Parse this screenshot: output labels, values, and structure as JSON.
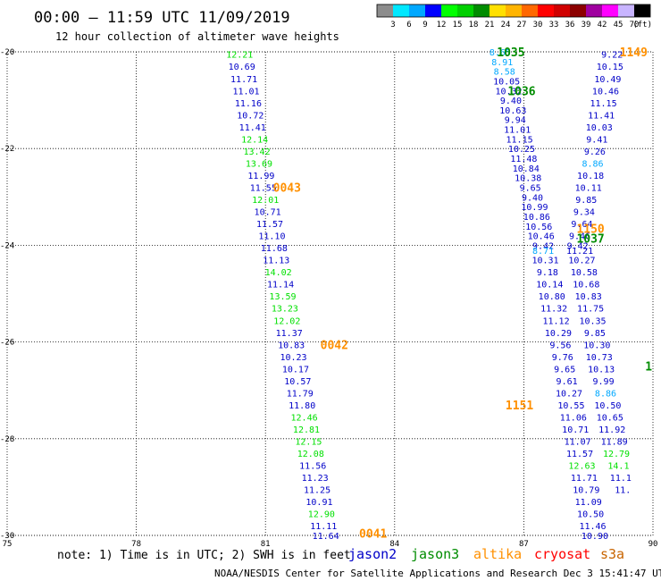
{
  "header": {
    "title": "00:00 – 11:59 UTC 11/09/2019",
    "subtitle": "12 hour collection of altimeter wave heights"
  },
  "colorbar": {
    "colors": [
      "#8c8c8c",
      "#00e8ff",
      "#00a8ff",
      "#0000ff",
      "#00ff00",
      "#00d000",
      "#008c00",
      "#ffe000",
      "#ffb400",
      "#ff6800",
      "#ff0000",
      "#d00000",
      "#8c0000",
      "#a000a0",
      "#ff00ff",
      "#c8b4ff",
      "#000000"
    ],
    "labels": [
      "3",
      "6",
      "9",
      "12",
      "15",
      "18",
      "21",
      "24",
      "27",
      "30",
      "33",
      "36",
      "39",
      "42",
      "45",
      "70"
    ],
    "unit": "(ft)"
  },
  "chart_data": {
    "type": "scatter",
    "xlabel": "",
    "ylabel": "",
    "xlim": [
      75,
      90
    ],
    "ylim": [
      -30,
      -20
    ],
    "x_ticks": [
      "75",
      "78",
      "81",
      "84",
      "87",
      "90"
    ],
    "y_ticks": [
      "-20",
      "-22",
      "-24",
      "-26",
      "-28",
      "-30"
    ],
    "grid": true,
    "points": [
      {
        "lon": 80.4,
        "lat": -20.05,
        "v": "12.21",
        "c": "#00e000"
      },
      {
        "lon": 80.45,
        "lat": -20.3,
        "v": "10.69",
        "c": "#0000c8"
      },
      {
        "lon": 80.5,
        "lat": -20.55,
        "v": "11.71",
        "c": "#0000c8"
      },
      {
        "lon": 80.55,
        "lat": -20.8,
        "v": "11.01",
        "c": "#0000c8"
      },
      {
        "lon": 80.6,
        "lat": -21.05,
        "v": "11.16",
        "c": "#0000c8"
      },
      {
        "lon": 80.65,
        "lat": -21.3,
        "v": "10.72",
        "c": "#0000c8"
      },
      {
        "lon": 80.7,
        "lat": -21.55,
        "v": "11.41",
        "c": "#0000c8"
      },
      {
        "lon": 80.75,
        "lat": -21.8,
        "v": "12.14",
        "c": "#00e000"
      },
      {
        "lon": 80.8,
        "lat": -22.05,
        "v": "13.42",
        "c": "#00e000"
      },
      {
        "lon": 80.85,
        "lat": -22.3,
        "v": "13.69",
        "c": "#00e000"
      },
      {
        "lon": 80.9,
        "lat": -22.55,
        "v": "11.99",
        "c": "#0000c8"
      },
      {
        "lon": 80.95,
        "lat": -22.8,
        "v": "11.55",
        "c": "#0000c8"
      },
      {
        "lon": 81.0,
        "lat": -23.05,
        "v": "12.01",
        "c": "#00e000"
      },
      {
        "lon": 81.05,
        "lat": -23.3,
        "v": "10.71",
        "c": "#0000c8"
      },
      {
        "lon": 81.1,
        "lat": -23.55,
        "v": "11.57",
        "c": "#0000c8"
      },
      {
        "lon": 81.15,
        "lat": -23.8,
        "v": "11.10",
        "c": "#0000c8"
      },
      {
        "lon": 81.2,
        "lat": -24.05,
        "v": "11.68",
        "c": "#0000c8"
      },
      {
        "lon": 81.25,
        "lat": -24.3,
        "v": "11.13",
        "c": "#0000c8"
      },
      {
        "lon": 81.3,
        "lat": -24.55,
        "v": "14.02",
        "c": "#00e000"
      },
      {
        "lon": 81.35,
        "lat": -24.8,
        "v": "11.14",
        "c": "#0000c8"
      },
      {
        "lon": 81.4,
        "lat": -25.05,
        "v": "13.59",
        "c": "#00e000"
      },
      {
        "lon": 81.45,
        "lat": -25.3,
        "v": "13.23",
        "c": "#00e000"
      },
      {
        "lon": 81.5,
        "lat": -25.55,
        "v": "12.02",
        "c": "#00e000"
      },
      {
        "lon": 81.55,
        "lat": -25.8,
        "v": "11.37",
        "c": "#0000c8"
      },
      {
        "lon": 81.6,
        "lat": -26.05,
        "v": "10.83",
        "c": "#0000c8"
      },
      {
        "lon": 81.65,
        "lat": -26.3,
        "v": "10.23",
        "c": "#0000c8"
      },
      {
        "lon": 81.7,
        "lat": -26.55,
        "v": "10.17",
        "c": "#0000c8"
      },
      {
        "lon": 81.75,
        "lat": -26.8,
        "v": "10.57",
        "c": "#0000c8"
      },
      {
        "lon": 81.8,
        "lat": -27.05,
        "v": "11.79",
        "c": "#0000c8"
      },
      {
        "lon": 81.85,
        "lat": -27.3,
        "v": "11.80",
        "c": "#0000c8"
      },
      {
        "lon": 81.9,
        "lat": -27.55,
        "v": "12.46",
        "c": "#00e000"
      },
      {
        "lon": 81.95,
        "lat": -27.8,
        "v": "12.81",
        "c": "#00e000"
      },
      {
        "lon": 82.0,
        "lat": -28.05,
        "v": "12.15",
        "c": "#00e000"
      },
      {
        "lon": 82.05,
        "lat": -28.3,
        "v": "12.08",
        "c": "#00e000"
      },
      {
        "lon": 82.1,
        "lat": -28.55,
        "v": "11.56",
        "c": "#0000c8"
      },
      {
        "lon": 82.15,
        "lat": -28.8,
        "v": "11.23",
        "c": "#0000c8"
      },
      {
        "lon": 82.2,
        "lat": -29.05,
        "v": "11.25",
        "c": "#0000c8"
      },
      {
        "lon": 82.25,
        "lat": -29.3,
        "v": "10.91",
        "c": "#0000c8"
      },
      {
        "lon": 82.3,
        "lat": -29.55,
        "v": "12.90",
        "c": "#00e000"
      },
      {
        "lon": 82.35,
        "lat": -29.8,
        "v": "11.11",
        "c": "#0000c8"
      },
      {
        "lon": 82.4,
        "lat": -30.0,
        "v": "11.64",
        "c": "#0000c8"
      },
      {
        "lon": 86.45,
        "lat": -20.0,
        "v": "8.65",
        "c": "#00a8ff"
      },
      {
        "lon": 86.5,
        "lat": -20.2,
        "v": "8.91",
        "c": "#00a8ff"
      },
      {
        "lon": 86.55,
        "lat": -20.4,
        "v": "8.58",
        "c": "#00a8ff"
      },
      {
        "lon": 86.6,
        "lat": -20.6,
        "v": "10.05",
        "c": "#0000c8"
      },
      {
        "lon": 86.65,
        "lat": -20.8,
        "v": "10.32",
        "c": "#0000c8"
      },
      {
        "lon": 86.7,
        "lat": -21.0,
        "v": "9.40",
        "c": "#0000c8"
      },
      {
        "lon": 86.75,
        "lat": -21.2,
        "v": "10.63",
        "c": "#0000c8"
      },
      {
        "lon": 86.8,
        "lat": -21.4,
        "v": "9.94",
        "c": "#0000c8"
      },
      {
        "lon": 86.85,
        "lat": -21.6,
        "v": "11.01",
        "c": "#0000c8"
      },
      {
        "lon": 86.9,
        "lat": -21.8,
        "v": "11.15",
        "c": "#0000c8"
      },
      {
        "lon": 86.95,
        "lat": -22.0,
        "v": "10.25",
        "c": "#0000c8"
      },
      {
        "lon": 87.0,
        "lat": -22.2,
        "v": "11.48",
        "c": "#0000c8"
      },
      {
        "lon": 87.05,
        "lat": -22.4,
        "v": "10.84",
        "c": "#0000c8"
      },
      {
        "lon": 87.1,
        "lat": -22.6,
        "v": "10.38",
        "c": "#0000c8"
      },
      {
        "lon": 87.15,
        "lat": -22.8,
        "v": "9.65",
        "c": "#0000c8"
      },
      {
        "lon": 87.2,
        "lat": -23.0,
        "v": "9.40",
        "c": "#0000c8"
      },
      {
        "lon": 87.25,
        "lat": -23.2,
        "v": "10.99",
        "c": "#0000c8"
      },
      {
        "lon": 87.3,
        "lat": -23.4,
        "v": "10.86",
        "c": "#0000c8"
      },
      {
        "lon": 87.35,
        "lat": -23.6,
        "v": "10.56",
        "c": "#0000c8"
      },
      {
        "lon": 87.4,
        "lat": -23.8,
        "v": "10.46",
        "c": "#0000c8"
      },
      {
        "lon": 87.45,
        "lat": -24.0,
        "v": "9.42",
        "c": "#0000c8"
      },
      {
        "lon": 87.45,
        "lat": -24.1,
        "v": "8.71",
        "c": "#00a8ff"
      },
      {
        "lon": 87.5,
        "lat": -24.3,
        "v": "10.31",
        "c": "#0000c8"
      },
      {
        "lon": 87.55,
        "lat": -24.55,
        "v": "9.18",
        "c": "#0000c8"
      },
      {
        "lon": 87.6,
        "lat": -24.8,
        "v": "10.14",
        "c": "#0000c8"
      },
      {
        "lon": 87.65,
        "lat": -25.05,
        "v": "10.80",
        "c": "#0000c8"
      },
      {
        "lon": 87.7,
        "lat": -25.3,
        "v": "11.32",
        "c": "#0000c8"
      },
      {
        "lon": 87.75,
        "lat": -25.55,
        "v": "11.12",
        "c": "#0000c8"
      },
      {
        "lon": 87.8,
        "lat": -25.8,
        "v": "10.29",
        "c": "#0000c8"
      },
      {
        "lon": 87.85,
        "lat": -26.05,
        "v": "9.56",
        "c": "#0000c8"
      },
      {
        "lon": 87.9,
        "lat": -26.3,
        "v": "9.76",
        "c": "#0000c8"
      },
      {
        "lon": 87.95,
        "lat": -26.55,
        "v": "9.65",
        "c": "#0000c8"
      },
      {
        "lon": 88.0,
        "lat": -26.8,
        "v": "9.61",
        "c": "#0000c8"
      },
      {
        "lon": 88.05,
        "lat": -27.05,
        "v": "10.27",
        "c": "#0000c8"
      },
      {
        "lon": 88.1,
        "lat": -27.3,
        "v": "10.55",
        "c": "#0000c8"
      },
      {
        "lon": 88.15,
        "lat": -27.55,
        "v": "11.06",
        "c": "#0000c8"
      },
      {
        "lon": 88.2,
        "lat": -27.8,
        "v": "10.71",
        "c": "#0000c8"
      },
      {
        "lon": 88.25,
        "lat": -28.05,
        "v": "11.07",
        "c": "#0000c8"
      },
      {
        "lon": 88.3,
        "lat": -28.3,
        "v": "11.57",
        "c": "#0000c8"
      },
      {
        "lon": 88.35,
        "lat": -28.55,
        "v": "12.63",
        "c": "#00e000"
      },
      {
        "lon": 88.4,
        "lat": -28.8,
        "v": "11.71",
        "c": "#0000c8"
      },
      {
        "lon": 88.45,
        "lat": -29.05,
        "v": "10.79",
        "c": "#0000c8"
      },
      {
        "lon": 88.5,
        "lat": -29.3,
        "v": "11.09",
        "c": "#0000c8"
      },
      {
        "lon": 88.55,
        "lat": -29.55,
        "v": "10.50",
        "c": "#0000c8"
      },
      {
        "lon": 88.6,
        "lat": -29.8,
        "v": "11.46",
        "c": "#0000c8"
      },
      {
        "lon": 88.65,
        "lat": -30.0,
        "v": "10.90",
        "c": "#0000c8"
      },
      {
        "lon": 89.05,
        "lat": -20.05,
        "v": "9.22",
        "c": "#0000c8"
      },
      {
        "lon": 89.0,
        "lat": -20.3,
        "v": "10.15",
        "c": "#0000c8"
      },
      {
        "lon": 88.95,
        "lat": -20.55,
        "v": "10.49",
        "c": "#0000c8"
      },
      {
        "lon": 88.9,
        "lat": -20.8,
        "v": "10.46",
        "c": "#0000c8"
      },
      {
        "lon": 88.85,
        "lat": -21.05,
        "v": "11.15",
        "c": "#0000c8"
      },
      {
        "lon": 88.8,
        "lat": -21.3,
        "v": "11.41",
        "c": "#0000c8"
      },
      {
        "lon": 88.75,
        "lat": -21.55,
        "v": "10.03",
        "c": "#0000c8"
      },
      {
        "lon": 88.7,
        "lat": -21.8,
        "v": "9.41",
        "c": "#0000c8"
      },
      {
        "lon": 88.65,
        "lat": -22.05,
        "v": "9.26",
        "c": "#0000c8"
      },
      {
        "lon": 88.6,
        "lat": -22.3,
        "v": "8.86",
        "c": "#00a8ff"
      },
      {
        "lon": 88.55,
        "lat": -22.55,
        "v": "10.18",
        "c": "#0000c8"
      },
      {
        "lon": 88.5,
        "lat": -22.8,
        "v": "10.11",
        "c": "#0000c8"
      },
      {
        "lon": 88.45,
        "lat": -23.05,
        "v": "9.85",
        "c": "#0000c8"
      },
      {
        "lon": 88.4,
        "lat": -23.3,
        "v": "9.34",
        "c": "#0000c8"
      },
      {
        "lon": 88.35,
        "lat": -23.55,
        "v": "9.64",
        "c": "#0000c8"
      },
      {
        "lon": 88.3,
        "lat": -23.8,
        "v": "9.46",
        "c": "#0000c8"
      },
      {
        "lon": 88.25,
        "lat": -24.0,
        "v": "9.42",
        "c": "#0000c8"
      },
      {
        "lon": 88.3,
        "lat": -24.1,
        "v": "11.21",
        "c": "#0000c8"
      },
      {
        "lon": 88.35,
        "lat": -24.3,
        "v": "10.27",
        "c": "#0000c8"
      },
      {
        "lon": 88.4,
        "lat": -24.55,
        "v": "10.58",
        "c": "#0000c8"
      },
      {
        "lon": 88.45,
        "lat": -24.8,
        "v": "10.68",
        "c": "#0000c8"
      },
      {
        "lon": 88.5,
        "lat": -25.05,
        "v": "10.83",
        "c": "#0000c8"
      },
      {
        "lon": 88.55,
        "lat": -25.3,
        "v": "11.75",
        "c": "#0000c8"
      },
      {
        "lon": 88.6,
        "lat": -25.55,
        "v": "10.35",
        "c": "#0000c8"
      },
      {
        "lon": 88.65,
        "lat": -25.8,
        "v": "9.85",
        "c": "#0000c8"
      },
      {
        "lon": 88.7,
        "lat": -26.05,
        "v": "10.30",
        "c": "#0000c8"
      },
      {
        "lon": 88.75,
        "lat": -26.3,
        "v": "10.73",
        "c": "#0000c8"
      },
      {
        "lon": 88.8,
        "lat": -26.55,
        "v": "10.13",
        "c": "#0000c8"
      },
      {
        "lon": 88.85,
        "lat": -26.8,
        "v": "9.99",
        "c": "#0000c8"
      },
      {
        "lon": 88.9,
        "lat": -27.05,
        "v": "8.86",
        "c": "#00a8ff"
      },
      {
        "lon": 88.95,
        "lat": -27.3,
        "v": "10.50",
        "c": "#0000c8"
      },
      {
        "lon": 89.0,
        "lat": -27.55,
        "v": "10.65",
        "c": "#0000c8"
      },
      {
        "lon": 89.05,
        "lat": -27.8,
        "v": "11.92",
        "c": "#0000c8"
      },
      {
        "lon": 89.1,
        "lat": -28.05,
        "v": "11.89",
        "c": "#0000c8"
      },
      {
        "lon": 89.15,
        "lat": -28.3,
        "v": "12.79",
        "c": "#00e000"
      },
      {
        "lon": 89.2,
        "lat": -28.55,
        "v": "14.1",
        "c": "#00e000"
      },
      {
        "lon": 89.25,
        "lat": -28.8,
        "v": "11.1",
        "c": "#0000c8"
      },
      {
        "lon": 89.3,
        "lat": -29.05,
        "v": "11.",
        "c": "#0000c8"
      }
    ],
    "passes": [
      {
        "lon": 86.7,
        "lat": -20.0,
        "v": "1035",
        "c": "#008c00"
      },
      {
        "lon": 86.95,
        "lat": -20.8,
        "v": "1036",
        "c": "#008c00"
      },
      {
        "lon": 89.55,
        "lat": -20.0,
        "v": "1149",
        "c": "#ff9000"
      },
      {
        "lon": 81.5,
        "lat": -22.8,
        "v": "0043",
        "c": "#ff9000"
      },
      {
        "lon": 88.55,
        "lat": -23.65,
        "v": "1150",
        "c": "#ff9000"
      },
      {
        "lon": 88.55,
        "lat": -23.85,
        "v": "1037",
        "c": "#008c00"
      },
      {
        "lon": 82.6,
        "lat": -26.05,
        "v": "0042",
        "c": "#ff9000"
      },
      {
        "lon": 86.9,
        "lat": -27.3,
        "v": "1151",
        "c": "#ff9000"
      },
      {
        "lon": 89.9,
        "lat": -26.5,
        "v": "1",
        "c": "#008c00"
      },
      {
        "lon": 83.5,
        "lat": -29.95,
        "v": "0041",
        "c": "#ff9000"
      }
    ]
  },
  "note": "note: 1) Time is in UTC; 2) SWH is in feet",
  "satellites": [
    {
      "name": "jason2",
      "color": "#0000c8"
    },
    {
      "name": "jason3",
      "color": "#008c00"
    },
    {
      "name": "altika",
      "color": "#ff9000"
    },
    {
      "name": "cryosat",
      "color": "#ff0000"
    },
    {
      "name": "s3a",
      "color": "#c86400"
    }
  ],
  "footer": "NOAA/NESDIS Center for Satellite Applications and Research   Dec  3 15:41:47 UTC 2019"
}
